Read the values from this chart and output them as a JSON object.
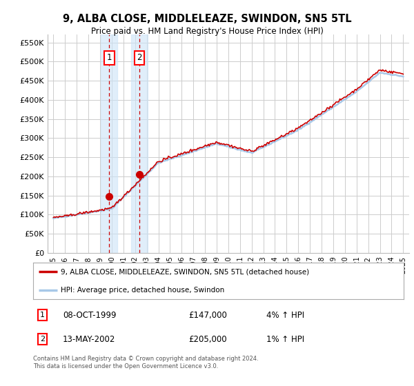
{
  "title": "9, ALBA CLOSE, MIDDLELEAZE, SWINDON, SN5 5TL",
  "subtitle": "Price paid vs. HM Land Registry's House Price Index (HPI)",
  "ylabel_ticks": [
    0,
    50000,
    100000,
    150000,
    200000,
    250000,
    300000,
    350000,
    400000,
    450000,
    500000,
    550000
  ],
  "ylabel_labels": [
    "£0",
    "£50K",
    "£100K",
    "£150K",
    "£200K",
    "£250K",
    "£300K",
    "£350K",
    "£400K",
    "£450K",
    "£500K",
    "£550K"
  ],
  "xlim": [
    1994.5,
    2025.5
  ],
  "ylim": [
    0,
    570000
  ],
  "line_color_red": "#cc0000",
  "line_color_blue": "#a8c8e8",
  "sale1_year": 1999.78,
  "sale1_price": 147000,
  "sale1_label": "08-OCT-1999",
  "sale1_amount": "£147,000",
  "sale1_hpi": "4% ↑ HPI",
  "sale2_year": 2002.37,
  "sale2_price": 205000,
  "sale2_label": "13-MAY-2002",
  "sale2_amount": "£205,000",
  "sale2_hpi": "1% ↑ HPI",
  "legend_line1": "9, ALBA CLOSE, MIDDLELEAZE, SWINDON, SN5 5TL (detached house)",
  "legend_line2": "HPI: Average price, detached house, Swindon",
  "footnote": "Contains HM Land Registry data © Crown copyright and database right 2024.\nThis data is licensed under the Open Government Licence v3.0.",
  "background_color": "#ffffff",
  "grid_color": "#cccccc"
}
